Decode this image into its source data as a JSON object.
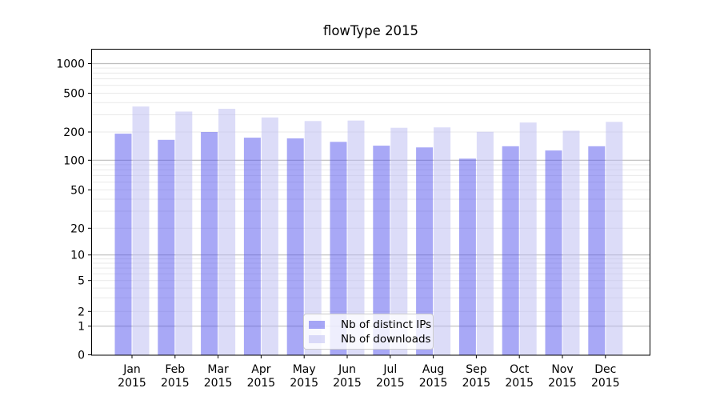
{
  "chart_data": {
    "type": "bar",
    "title": "flowType 2015",
    "categories": [
      "Jan",
      "Feb",
      "Mar",
      "Apr",
      "May",
      "Jun",
      "Jul",
      "Aug",
      "Sep",
      "Oct",
      "Nov",
      "Dec"
    ],
    "x_tick_year": "2015",
    "series": [
      {
        "name": "Nb of distinct IPs",
        "values": [
          192,
          165,
          200,
          174,
          171,
          157,
          143,
          137,
          104,
          141,
          127,
          141
        ],
        "fill": "rgba(81,81,237,0.5)",
        "approx_solid_color": "#a8a8f6"
      },
      {
        "name": "Nb of downloads",
        "values": [
          365,
          324,
          346,
          282,
          259,
          262,
          221,
          223,
          201,
          250,
          206,
          254
        ],
        "fill": "rgba(185,185,241,0.5)",
        "approx_solid_color": "#dcdcf8"
      }
    ],
    "xlabel": "",
    "ylabel": "",
    "yscale": "symlog",
    "yticks": [
      0,
      1,
      2,
      5,
      10,
      20,
      50,
      100,
      200,
      500,
      1000
    ],
    "ylim": [
      0,
      1400
    ],
    "grid": {
      "horizontal": true,
      "minor_color": "#e9e9e9",
      "major_color": "#bdbdbd",
      "major_at": [
        1,
        10,
        100,
        1000
      ]
    },
    "legend": {
      "position": "inside-bottom-center",
      "entries": [
        "Nb of distinct IPs",
        "Nb of downloads"
      ]
    }
  }
}
